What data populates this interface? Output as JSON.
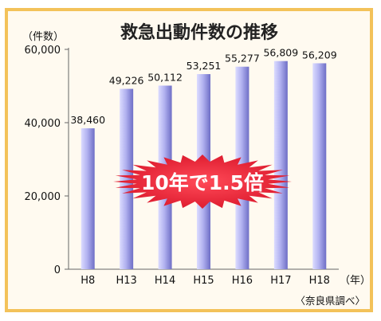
{
  "chart_data": {
    "type": "bar",
    "title": "救急出動件数の推移",
    "y_unit_label": "（件数）",
    "x_unit_label": "（年）",
    "categories": [
      "H8",
      "H13",
      "H14",
      "H15",
      "H16",
      "H17",
      "H18"
    ],
    "values": [
      38460,
      49226,
      50112,
      53251,
      55277,
      56809,
      56209
    ],
    "data_labels": [
      "38,460",
      "49,226",
      "50,112",
      "53,251",
      "55,277",
      "56,809",
      "56,209"
    ],
    "yticks": [
      0,
      20000,
      40000,
      60000
    ],
    "ytick_labels": [
      "0",
      "20,000",
      "40,000",
      "60,000"
    ],
    "ylim": [
      0,
      60000
    ],
    "grid": false,
    "source_note": "〈奈良県調べ〉",
    "annotation": "10年で1.5倍",
    "colors": {
      "bar_light": "#ccccff",
      "bar_dark": "#7777cc",
      "frame": "#f3c25a",
      "badge": "#e8283a"
    }
  }
}
